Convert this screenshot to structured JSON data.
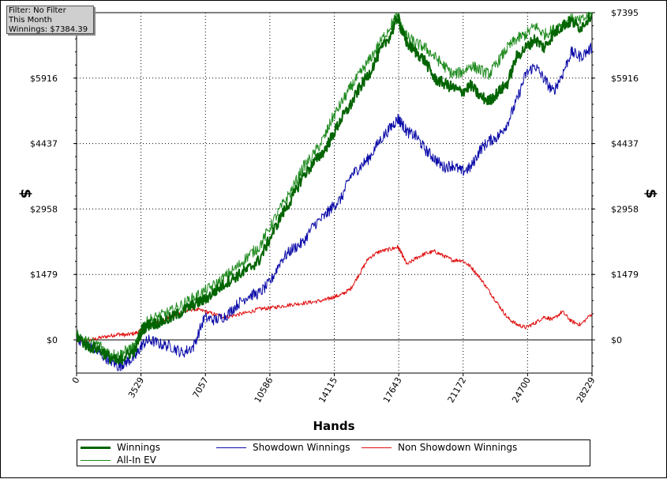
{
  "filter_box": {
    "line1": "Filter: No Filter",
    "line2": "This Month",
    "line3": "Winnings: $7384.39"
  },
  "chart_data": {
    "type": "line",
    "xlabel": "Hands",
    "ylabel_left": "$",
    "ylabel_right": "$",
    "xlim": [
      0,
      28229
    ],
    "ylim": [
      -750,
      7395
    ],
    "x_ticks": [
      "0",
      "3529",
      "7057",
      "10586",
      "14115",
      "17643",
      "21172",
      "24700",
      "28229"
    ],
    "x_tick_values": [
      0,
      3529,
      7057,
      10586,
      14115,
      17643,
      21172,
      24700,
      28229
    ],
    "y_ticks": [
      "$0",
      "$1479",
      "$2958",
      "$4437",
      "$5916",
      "$7395"
    ],
    "y_tick_values": [
      0,
      1479,
      2958,
      4437,
      5916,
      7395
    ],
    "grid": true,
    "legend_position": "bottom",
    "series": [
      {
        "name": "Winnings",
        "color": "#006400",
        "width": 2,
        "x": [
          0,
          600,
          1200,
          1800,
          2300,
          2700,
          3200,
          3600,
          4000,
          4600,
          5200,
          5800,
          6400,
          7000,
          7600,
          8200,
          8800,
          9400,
          10000,
          10600,
          11200,
          11800,
          12400,
          13000,
          13600,
          14000,
          14500,
          15000,
          15500,
          16000,
          16600,
          17200,
          17600,
          17800,
          18100,
          18600,
          19100,
          19600,
          20100,
          20600,
          21100,
          21600,
          22100,
          22600,
          23100,
          23600,
          24100,
          24600,
          25100,
          25600,
          26100,
          26600,
          27100,
          27600,
          28229
        ],
        "y": [
          100,
          -150,
          -200,
          -400,
          -500,
          -350,
          -250,
          250,
          350,
          400,
          500,
          650,
          800,
          900,
          1100,
          1300,
          1450,
          1600,
          1800,
          2300,
          2800,
          3200,
          3700,
          4000,
          4300,
          4600,
          5000,
          5300,
          5700,
          6000,
          6500,
          6900,
          7300,
          7000,
          6700,
          6500,
          6300,
          5900,
          5800,
          5700,
          5600,
          5750,
          5500,
          5400,
          5600,
          5800,
          6400,
          6600,
          6800,
          6600,
          6900,
          7100,
          7200,
          7050,
          7384
        ]
      },
      {
        "name": "All-In EV",
        "color": "#1f8b1f",
        "width": 1,
        "x": [
          0,
          600,
          1200,
          1800,
          2300,
          2700,
          3200,
          3600,
          4000,
          4600,
          5200,
          5800,
          6400,
          7000,
          7600,
          8200,
          8800,
          9400,
          10000,
          10600,
          11200,
          11800,
          12400,
          13000,
          13600,
          14000,
          14500,
          15000,
          15500,
          16000,
          16600,
          17200,
          17600,
          17800,
          18100,
          18600,
          19100,
          19600,
          20100,
          20600,
          21100,
          21600,
          22100,
          22600,
          23100,
          23600,
          24100,
          24600,
          25100,
          25600,
          26100,
          26600,
          27100,
          27600,
          28229
        ],
        "y": [
          150,
          -50,
          -100,
          -300,
          -350,
          -250,
          -150,
          300,
          450,
          550,
          650,
          800,
          950,
          1100,
          1250,
          1450,
          1650,
          1900,
          2100,
          2550,
          3000,
          3400,
          3900,
          4200,
          4600,
          5000,
          5350,
          5700,
          6000,
          6300,
          6700,
          7100,
          7350,
          7050,
          6850,
          6700,
          6600,
          6400,
          6200,
          6000,
          6050,
          6200,
          6100,
          6000,
          6300,
          6600,
          6800,
          6900,
          7100,
          6900,
          7000,
          7150,
          7250,
          7200,
          7395
        ]
      },
      {
        "name": "Showdown Winnings",
        "color": "#0a0aa8",
        "width": 1,
        "x": [
          0,
          600,
          1200,
          1800,
          2300,
          2700,
          3200,
          3600,
          4000,
          4600,
          5200,
          5800,
          6400,
          7000,
          7600,
          8200,
          8800,
          9400,
          10000,
          10600,
          11200,
          11800,
          12400,
          13000,
          13600,
          14000,
          14500,
          15000,
          15500,
          16000,
          16600,
          17200,
          17600,
          17800,
          18100,
          18600,
          19100,
          19600,
          20100,
          20600,
          21100,
          21600,
          22100,
          22600,
          23100,
          23600,
          24100,
          24600,
          25100,
          25600,
          26100,
          26600,
          27100,
          27600,
          28229
        ],
        "y": [
          50,
          -100,
          -300,
          -450,
          -600,
          -500,
          -400,
          -100,
          0,
          -100,
          -150,
          -300,
          -150,
          500,
          450,
          550,
          800,
          1000,
          1050,
          1300,
          1800,
          2050,
          2200,
          2600,
          2800,
          3000,
          3200,
          3700,
          3900,
          4100,
          4500,
          4800,
          5000,
          4900,
          4700,
          4600,
          4300,
          4100,
          3900,
          3950,
          3800,
          3900,
          4300,
          4500,
          4600,
          4900,
          5400,
          6000,
          6200,
          5900,
          5600,
          6000,
          6500,
          6400,
          6600
        ]
      },
      {
        "name": "Non Showdown Winnings",
        "color": "#e01010",
        "width": 1,
        "x": [
          0,
          600,
          1200,
          1800,
          2300,
          2700,
          3200,
          3600,
          4000,
          4600,
          5200,
          5800,
          6400,
          7000,
          7600,
          8200,
          8800,
          9400,
          10000,
          10600,
          11200,
          11800,
          12400,
          13000,
          13600,
          14000,
          14500,
          15000,
          15500,
          16000,
          16600,
          17200,
          17600,
          17800,
          18100,
          18600,
          19100,
          19600,
          20100,
          20600,
          21100,
          21600,
          22100,
          22600,
          23100,
          23600,
          24100,
          24600,
          25100,
          25600,
          26100,
          26600,
          27100,
          27600,
          28229
        ],
        "y": [
          0,
          -20,
          40,
          90,
          130,
          110,
          150,
          220,
          310,
          420,
          520,
          620,
          700,
          650,
          570,
          520,
          570,
          620,
          700,
          720,
          760,
          800,
          830,
          860,
          900,
          960,
          1020,
          1150,
          1500,
          1850,
          2000,
          2050,
          2100,
          1950,
          1700,
          1850,
          1950,
          2000,
          1900,
          1800,
          1800,
          1650,
          1400,
          1100,
          800,
          500,
          350,
          280,
          380,
          520,
          460,
          640,
          420,
          340,
          600
        ]
      }
    ]
  }
}
